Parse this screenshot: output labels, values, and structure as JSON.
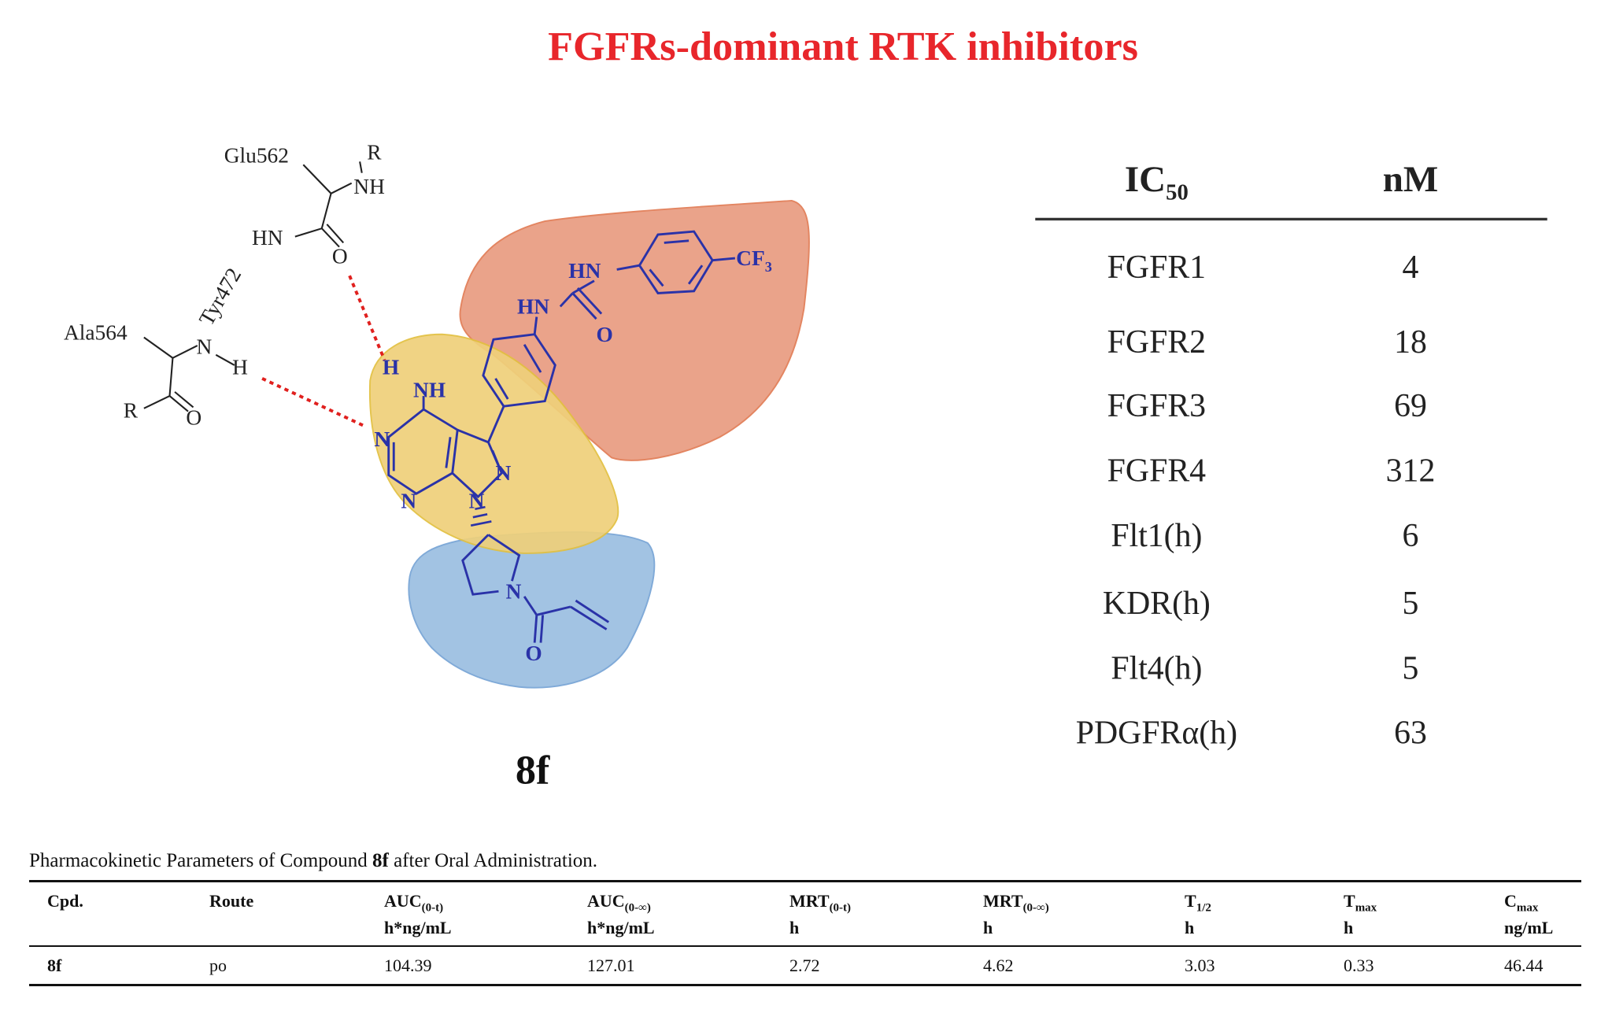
{
  "title": "FGFRs-dominant  RTK inhibitors",
  "title_color": "#e8262b",
  "diagram": {
    "compound_label": "8f",
    "residues": {
      "glu": "Glu562",
      "tyr": "Tyr472",
      "ala": "Ala564"
    },
    "atoms": {
      "R": "R",
      "NH": "NH",
      "HN": "HN",
      "O": "O",
      "N": "N",
      "H": "H",
      "CF3": "CF",
      "CF3_sub": "3"
    },
    "pocket_colors": {
      "hydrophobic_back": "#e89a7e",
      "hinge": "#efd07a",
      "solvent": "#9ec0e2"
    },
    "ligand_color": "#2a32a8",
    "hbond_color": "#e0201e"
  },
  "ic50_table": {
    "header": {
      "col1": "IC",
      "col1_sub": "50",
      "col2": "nM"
    },
    "rows": [
      {
        "target": "FGFR1",
        "value": "4"
      },
      {
        "target": "FGFR2",
        "value": "18"
      },
      {
        "target": "FGFR3",
        "value": "69"
      },
      {
        "target": "FGFR4",
        "value": "312"
      },
      {
        "target": "Flt1(h)",
        "value": "6"
      },
      {
        "target": "KDR(h)",
        "value": "5"
      },
      {
        "target": "Flt4(h)",
        "value": "5"
      },
      {
        "target": "PDGFRα(h)",
        "value": "63"
      }
    ]
  },
  "pk_table": {
    "caption_pre": "Pharmacokinetic Parameters of Compound ",
    "caption_bold": "8f",
    "caption_post": " after Oral Administration.",
    "headers": [
      {
        "name": "Cpd.",
        "sub": "",
        "unit": ""
      },
      {
        "name": "Route",
        "sub": "",
        "unit": ""
      },
      {
        "name": "AUC",
        "sub": "(0-t)",
        "unit": "h*ng/mL"
      },
      {
        "name": "AUC",
        "sub": "(0-∞)",
        "unit": "h*ng/mL"
      },
      {
        "name": "MRT",
        "sub": "(0-t)",
        "unit": "h"
      },
      {
        "name": "MRT",
        "sub": "(0-∞)",
        "unit": "h"
      },
      {
        "name": "T",
        "sub": "1/2",
        "unit": "h"
      },
      {
        "name": "T",
        "sub": "max",
        "unit": "h"
      },
      {
        "name": "C",
        "sub": "max",
        "unit": "ng/mL"
      }
    ],
    "row": [
      "8f",
      "po",
      "104.39",
      "127.01",
      "2.72",
      "4.62",
      "3.03",
      "0.33",
      "46.44"
    ]
  }
}
